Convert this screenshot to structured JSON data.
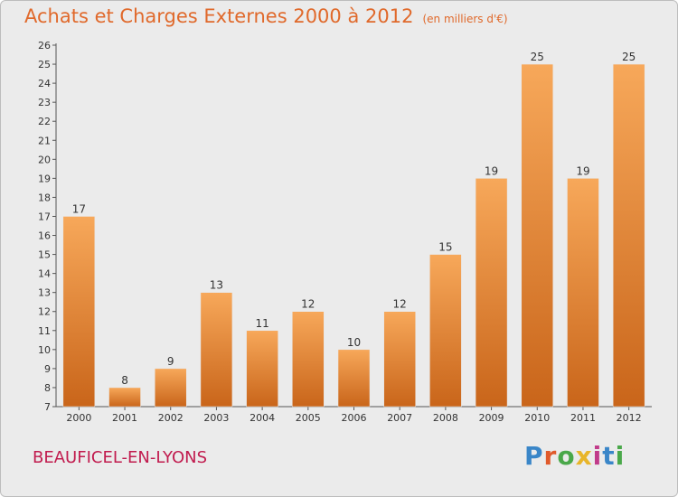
{
  "header": {
    "title": "Achats et Charges Externes 2000 à 2012",
    "unit": "(en milliers d'€)"
  },
  "footer": {
    "commune": "BEAUFICEL-EN-LYONS",
    "logo_text": "Proxiti",
    "logo_colors": [
      "#3a86c8",
      "#e05a2b",
      "#4aa84a",
      "#e8b52a",
      "#c13b8a",
      "#3a86c8",
      "#4aa84a"
    ]
  },
  "colors": {
    "bar_light": "#f7a85a",
    "bar_dark": "#c9651a",
    "background": "#ebebeb",
    "title": "#e0692b",
    "commune": "#c11b4e"
  },
  "chart_data": {
    "type": "bar",
    "title": "Achats et Charges Externes 2000 à 2012",
    "subtitle": "(en milliers d'€)",
    "categories": [
      "2000",
      "2001",
      "2002",
      "2003",
      "2004",
      "2005",
      "2006",
      "2007",
      "2008",
      "2009",
      "2010",
      "2011",
      "2012"
    ],
    "values": [
      17,
      8,
      9,
      13,
      11,
      12,
      10,
      12,
      15,
      19,
      25,
      19,
      25
    ],
    "ylim": [
      7,
      26
    ],
    "yticks": [
      7,
      8,
      9,
      10,
      11,
      12,
      13,
      14,
      15,
      16,
      17,
      18,
      19,
      20,
      21,
      22,
      23,
      24,
      25,
      26
    ],
    "grid": false,
    "legend": "none"
  }
}
